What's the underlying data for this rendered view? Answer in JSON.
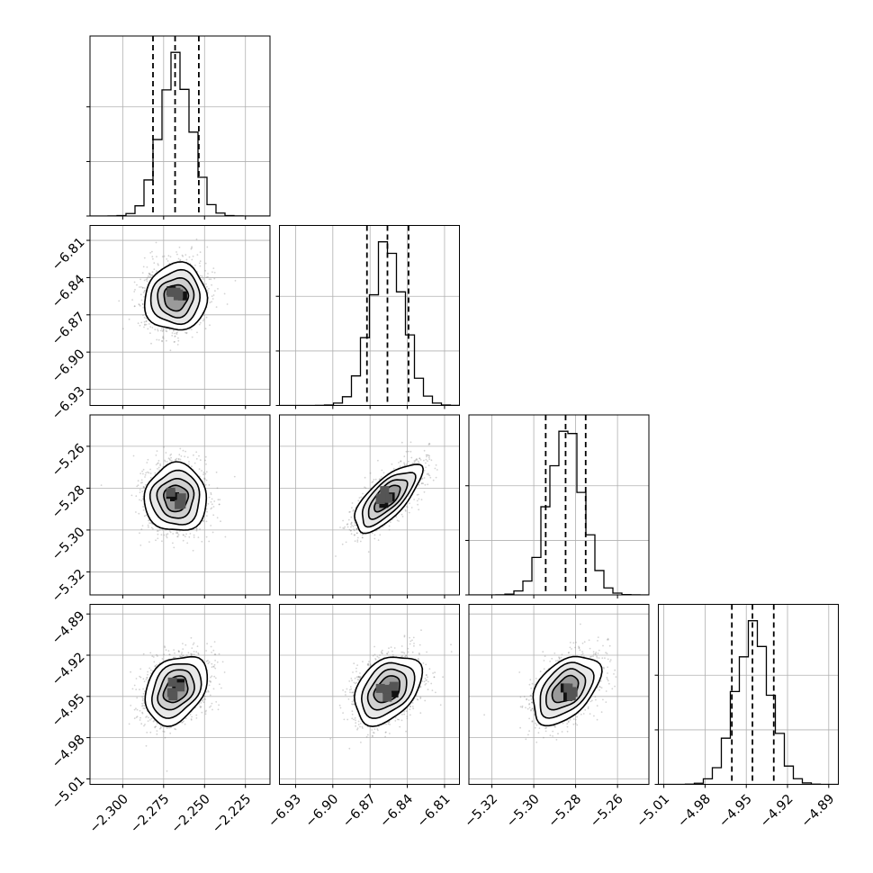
{
  "chart_data": {
    "type": "corner",
    "parameters": [
      {
        "ticks": [
          -2.3,
          -2.275,
          -2.25,
          -2.225
        ],
        "tick_labels": [
          "−2.300",
          "−2.275",
          "−2.250",
          "−2.225"
        ],
        "range": [
          -2.32,
          -2.21
        ],
        "mean": -2.2675,
        "sigma": 0.0095,
        "quantiles": [
          -2.2815,
          -2.268,
          -2.2535
        ]
      },
      {
        "ticks": [
          -6.93,
          -6.9,
          -6.87,
          -6.84,
          -6.81
        ],
        "tick_labels": [
          "−6.93",
          "−6.90",
          "−6.87",
          "−6.84",
          "−6.81"
        ],
        "range": [
          -6.943,
          -6.798
        ],
        "mean": -6.856,
        "sigma": 0.0135,
        "quantiles": [
          -6.8725,
          -6.856,
          -6.839
        ]
      },
      {
        "ticks": [
          -5.32,
          -5.3,
          -5.28,
          -5.26
        ],
        "tick_labels": [
          "−5.32",
          "−5.30",
          "−5.28",
          "−5.26"
        ],
        "range": [
          -5.331,
          -5.245
        ],
        "mean": -5.2848,
        "sigma": 0.0081,
        "quantiles": [
          -5.2943,
          -5.2848,
          -5.2752
        ]
      },
      {
        "ticks": [
          -5.01,
          -4.98,
          -4.95,
          -4.92,
          -4.89
        ],
        "tick_labels": [
          "−5.01",
          "−4.98",
          "−4.95",
          "−4.92",
          "−4.89"
        ],
        "range": [
          -5.014,
          -4.883
        ],
        "mean": -4.945,
        "sigma": 0.0125,
        "quantiles": [
          -4.9605,
          -4.9455,
          -4.93
        ]
      }
    ],
    "correlations": [
      {
        "pair": [
          1,
          0
        ],
        "rho": 0.05
      },
      {
        "pair": [
          2,
          0
        ],
        "rho": 0.0
      },
      {
        "pair": [
          2,
          1
        ],
        "rho": 0.72
      },
      {
        "pair": [
          3,
          0
        ],
        "rho": 0.3
      },
      {
        "pair": [
          3,
          1
        ],
        "rho": 0.38
      },
      {
        "pair": [
          3,
          2
        ],
        "rho": 0.45
      }
    ],
    "histogram_bins": 20,
    "histogram_grid_fractions": [
      0.333,
      0.667
    ],
    "contour_levels": [
      0.118,
      0.393,
      0.675,
      0.865
    ],
    "grid": true,
    "scatter_color": "#808080",
    "density_color": "#000000",
    "line_color": "#000000",
    "title": "",
    "xlabel": "",
    "ylabel": ""
  }
}
